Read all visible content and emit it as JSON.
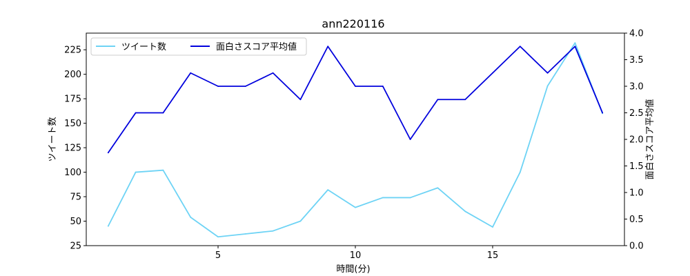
{
  "chart_data": {
    "type": "line",
    "title": "ann220116",
    "xlabel": "時間(分)",
    "ylabel_left": "ツイート数",
    "ylabel_right": "面白さスコア平均値",
    "xlim": [
      0.2,
      19.8
    ],
    "ylim_left": [
      25,
      242
    ],
    "ylim_right": [
      0.0,
      4.0
    ],
    "xticks": [
      5,
      10,
      15
    ],
    "yticks_left": [
      25,
      50,
      75,
      100,
      125,
      150,
      175,
      200,
      225
    ],
    "yticks_right": [
      0.0,
      0.5,
      1.0,
      1.5,
      2.0,
      2.5,
      3.0,
      3.5,
      4.0
    ],
    "grid": false,
    "legend_position": "top-left",
    "x": [
      1,
      2,
      3,
      4,
      5,
      6,
      7,
      8,
      9,
      10,
      11,
      12,
      13,
      14,
      15,
      16,
      17,
      18,
      19
    ],
    "series": [
      {
        "name": "ツイート数",
        "axis": "left",
        "color": "#6dd3f5",
        "values": [
          45,
          100,
          102,
          54,
          34,
          37,
          40,
          50,
          82,
          64,
          74,
          74,
          84,
          60,
          44,
          100,
          188,
          232,
          160
        ]
      },
      {
        "name": "面白さスコア平均値",
        "axis": "right",
        "color": "#0000dd",
        "values": [
          1.75,
          2.5,
          2.5,
          3.25,
          3.0,
          3.0,
          3.25,
          2.75,
          3.75,
          3.0,
          3.0,
          2.0,
          2.75,
          2.75,
          3.25,
          3.75,
          3.25,
          3.75,
          2.5
        ]
      }
    ]
  }
}
